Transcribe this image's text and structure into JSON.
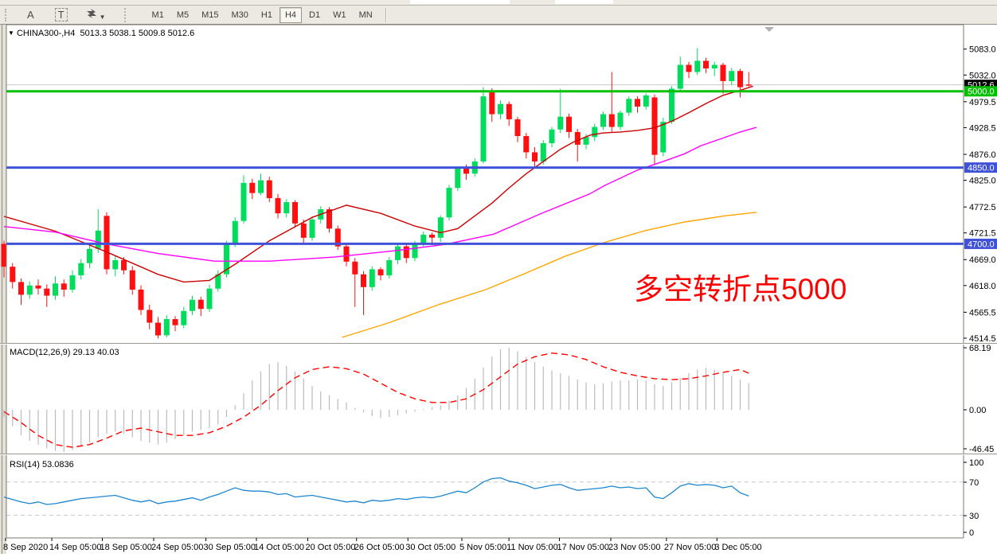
{
  "toolbar": {
    "tools": {
      "a_label": "A",
      "t_label": "T"
    },
    "timeframes": [
      "M1",
      "M5",
      "M15",
      "M30",
      "H1",
      "H4",
      "D1",
      "W1",
      "MN"
    ],
    "active_timeframe": "H4"
  },
  "chart": {
    "symbol_title": "CHINA300-,H4",
    "ohlc_text": "5013.3 5038.1 5009.8 5012.6",
    "macd_label": "MACD(12,26,9) 29.13 40.03",
    "rsi_label": "RSI(14) 53.0836",
    "annotation_text": "多空转折点5000",
    "annotation_color": "#ff0000"
  },
  "chart_data": [
    {
      "type": "candlestick",
      "title": "CHINA300-,H4",
      "current_open": 5013.3,
      "current_high": 5038.1,
      "current_low": 5009.8,
      "current_close": 5012.6,
      "bull_color": "#00dc5c",
      "bear_color": "#ff0f0f",
      "y_ticks": [
        5083.0,
        5032.0,
        4979.5,
        4928.5,
        4876.0,
        4825.0,
        4772.5,
        4721.5,
        4669.0,
        4618.0,
        4565.5,
        4514.5
      ],
      "ylim": [
        4514.5,
        5083.0
      ],
      "x_ticks": [
        {
          "i": 0,
          "label": "8 Sep 2020"
        },
        {
          "i": 5.4,
          "label": "14 Sep 05:00"
        },
        {
          "i": 11.3,
          "label": "18 Sep 05:00"
        },
        {
          "i": 17.3,
          "label": "24 Sep 05:00"
        },
        {
          "i": 23.4,
          "label": "30 Sep 05:00"
        },
        {
          "i": 29.3,
          "label": "14 Oct 05:00"
        },
        {
          "i": 35.3,
          "label": "20 Oct 05:00"
        },
        {
          "i": 41.0,
          "label": "26 Oct 05:00"
        },
        {
          "i": 47.0,
          "label": "30 Oct 05:00"
        },
        {
          "i": 53.3,
          "label": "5 Nov 05:00"
        },
        {
          "i": 58.8,
          "label": "11 Nov 05:00"
        },
        {
          "i": 64.7,
          "label": "17 Nov 05:00"
        },
        {
          "i": 70.7,
          "label": "23 Nov 05:00"
        },
        {
          "i": 77.2,
          "label": "27 Nov 05:00"
        },
        {
          "i": 83.1,
          "label": "3 Dec 05:00"
        }
      ],
      "hlines": [
        {
          "price": 5000.0,
          "label": "5000.0",
          "color": "#00c000",
          "width": 3
        },
        {
          "price": 4850.0,
          "label": "4850.0",
          "color": "#4052d8",
          "width": 3
        },
        {
          "price": 4700.0,
          "label": "4700.0",
          "color": "#4052d8",
          "width": 3
        }
      ],
      "bid_line": {
        "price": 5012.6,
        "label": "5012.6",
        "line_color": "#c8c8c8",
        "box_color": "#000000"
      },
      "candles": [
        [
          4700,
          4706,
          4634,
          4655
        ],
        [
          4655,
          4662,
          4612,
          4625
        ],
        [
          4625,
          4632,
          4580,
          4600
        ],
        [
          4600,
          4626,
          4592,
          4618
        ],
        [
          4618,
          4630,
          4600,
          4612
        ],
        [
          4612,
          4620,
          4576,
          4598
        ],
        [
          4598,
          4636,
          4590,
          4622
        ],
        [
          4622,
          4630,
          4596,
          4610
        ],
        [
          4610,
          4648,
          4604,
          4638
        ],
        [
          4638,
          4670,
          4630,
          4662
        ],
        [
          4662,
          4700,
          4652,
          4690
        ],
        [
          4690,
          4768,
          4682,
          4726
        ],
        [
          4755,
          4762,
          4640,
          4650
        ],
        [
          4650,
          4676,
          4636,
          4668
        ],
        [
          4668,
          4674,
          4640,
          4648
        ],
        [
          4648,
          4656,
          4600,
          4610
        ],
        [
          4610,
          4618,
          4560,
          4570
        ],
        [
          4570,
          4580,
          4532,
          4545
        ],
        [
          4545,
          4556,
          4514,
          4520
        ],
        [
          4520,
          4560,
          4516,
          4552
        ],
        [
          4552,
          4558,
          4528,
          4540
        ],
        [
          4540,
          4576,
          4534,
          4568
        ],
        [
          4568,
          4598,
          4560,
          4590
        ],
        [
          4590,
          4596,
          4558,
          4572
        ],
        [
          4572,
          4620,
          4566,
          4612
        ],
        [
          4612,
          4648,
          4606,
          4640
        ],
        [
          4640,
          4706,
          4634,
          4700
        ],
        [
          4700,
          4752,
          4694,
          4745
        ],
        [
          4745,
          4835,
          4740,
          4820
        ],
        [
          4820,
          4828,
          4788,
          4800
        ],
        [
          4800,
          4838,
          4796,
          4825
        ],
        [
          4825,
          4832,
          4782,
          4790
        ],
        [
          4790,
          4798,
          4750,
          4760
        ],
        [
          4760,
          4788,
          4752,
          4782
        ],
        [
          4782,
          4786,
          4732,
          4740
        ],
        [
          4740,
          4748,
          4700,
          4712
        ],
        [
          4712,
          4754,
          4706,
          4748
        ],
        [
          4748,
          4774,
          4740,
          4768
        ],
        [
          4768,
          4772,
          4722,
          4730
        ],
        [
          4730,
          4736,
          4688,
          4695
        ],
        [
          4695,
          4700,
          4656,
          4665
        ],
        [
          4665,
          4672,
          4576,
          4640
        ],
        [
          4640,
          4646,
          4560,
          4615
        ],
        [
          4615,
          4656,
          4608,
          4650
        ],
        [
          4650,
          4654,
          4628,
          4638
        ],
        [
          4638,
          4674,
          4632,
          4668
        ],
        [
          4668,
          4700,
          4660,
          4695
        ],
        [
          4695,
          4700,
          4662,
          4672
        ],
        [
          4672,
          4706,
          4666,
          4700
        ],
        [
          4700,
          4724,
          4694,
          4718
        ],
        [
          4718,
          4722,
          4698,
          4712
        ],
        [
          4712,
          4756,
          4704,
          4752
        ],
        [
          4752,
          4816,
          4746,
          4810
        ],
        [
          4810,
          4852,
          4804,
          4848
        ],
        [
          4848,
          4856,
          4826,
          4838
        ],
        [
          4838,
          4868,
          4832,
          4862
        ],
        [
          4862,
          5008,
          4858,
          4990
        ],
        [
          5000,
          5006,
          4940,
          4955
        ],
        [
          4955,
          4982,
          4945,
          4975
        ],
        [
          4975,
          4980,
          4932,
          4945
        ],
        [
          4945,
          4950,
          4900,
          4912
        ],
        [
          4912,
          4918,
          4868,
          4880
        ],
        [
          4880,
          4890,
          4850,
          4862
        ],
        [
          4862,
          4904,
          4856,
          4898
        ],
        [
          4898,
          4930,
          4890,
          4925
        ],
        [
          4925,
          5005,
          4918,
          4950
        ],
        [
          4950,
          4956,
          4908,
          4920
        ],
        [
          4920,
          4926,
          4862,
          4895
        ],
        [
          4895,
          4916,
          4886,
          4910
        ],
        [
          4910,
          4936,
          4902,
          4930
        ],
        [
          4930,
          4960,
          4924,
          4955
        ],
        [
          4955,
          5038,
          4920,
          4930
        ],
        [
          4930,
          4962,
          4924,
          4958
        ],
        [
          4958,
          4990,
          4952,
          4985
        ],
        [
          4985,
          4990,
          4958,
          4970
        ],
        [
          4970,
          4996,
          4964,
          4992
        ],
        [
          4988,
          4994,
          4855,
          4875
        ],
        [
          4880,
          4948,
          4872,
          4940
        ],
        [
          4940,
          5010,
          4936,
          5005
        ],
        [
          5005,
          5068,
          5000,
          5052
        ],
        [
          5052,
          5058,
          5026,
          5038
        ],
        [
          5038,
          5085,
          5032,
          5060
        ],
        [
          5060,
          5066,
          5036,
          5045
        ],
        [
          5045,
          5058,
          5030,
          5052
        ],
        [
          5052,
          5056,
          4995,
          5020
        ],
        [
          5020,
          5046,
          5012,
          5040
        ],
        [
          5040,
          5044,
          4988,
          5008
        ],
        [
          5013.3,
          5038.1,
          5009.8,
          5012.6
        ]
      ],
      "overlays": [
        {
          "name": "ma-red",
          "color": "#cc0000",
          "width": 1.4,
          "points": [
            [
              0,
              4754
            ],
            [
              6,
              4725
            ],
            [
              12,
              4684
            ],
            [
              18,
              4640
            ],
            [
              21,
              4625
            ],
            [
              24,
              4628
            ],
            [
              27,
              4660
            ],
            [
              31,
              4706
            ],
            [
              36,
              4752
            ],
            [
              40,
              4776
            ],
            [
              44,
              4760
            ],
            [
              48,
              4735
            ],
            [
              51,
              4722
            ],
            [
              53,
              4730
            ],
            [
              55,
              4755
            ],
            [
              57,
              4780
            ],
            [
              59,
              4810
            ],
            [
              61,
              4838
            ],
            [
              63,
              4862
            ],
            [
              65,
              4886
            ],
            [
              66.5,
              4900
            ],
            [
              68.5,
              4914
            ],
            [
              70,
              4918
            ],
            [
              72,
              4920
            ],
            [
              74,
              4923
            ],
            [
              76,
              4928
            ],
            [
              78,
              4941
            ],
            [
              80,
              4958
            ],
            [
              82,
              4976
            ],
            [
              84,
              4992
            ],
            [
              86,
              5002
            ],
            [
              87.5,
              5010
            ]
          ]
        },
        {
          "name": "ma-magenta",
          "color": "#ff00ff",
          "width": 1.4,
          "points": [
            [
              0,
              4734
            ],
            [
              6,
              4723
            ],
            [
              11.6,
              4701
            ],
            [
              18,
              4681
            ],
            [
              24.6,
              4666
            ],
            [
              31,
              4666
            ],
            [
              38.6,
              4674
            ],
            [
              46,
              4687
            ],
            [
              51.6,
              4699
            ],
            [
              57.2,
              4719
            ],
            [
              62.8,
              4760
            ],
            [
              68.4,
              4798
            ],
            [
              70.2,
              4815
            ],
            [
              74,
              4845
            ],
            [
              77,
              4862
            ],
            [
              79.5,
              4877
            ],
            [
              81.4,
              4893
            ],
            [
              84,
              4908
            ],
            [
              86,
              4920
            ],
            [
              87.9,
              4929
            ]
          ]
        },
        {
          "name": "ma-orange",
          "color": "#ffa500",
          "width": 1.4,
          "points": [
            [
              39.5,
              4516
            ],
            [
              45,
              4545
            ],
            [
              50.7,
              4580
            ],
            [
              56.3,
              4610
            ],
            [
              60.9,
              4642
            ],
            [
              65.6,
              4676
            ],
            [
              70.2,
              4703
            ],
            [
              74.9,
              4726
            ],
            [
              79.5,
              4743
            ],
            [
              84.2,
              4755
            ],
            [
              87.9,
              4762
            ]
          ]
        }
      ]
    },
    {
      "type": "bar",
      "title": "MACD(12,26,9)",
      "main_value": 29.13,
      "signal_value": 40.03,
      "y_ticks": [
        68.19,
        0.0,
        -46.45
      ],
      "histogram_color": "#bbbbbb",
      "signal_color": "#ff0000",
      "values": [
        -8,
        -18,
        -28,
        -34,
        -38,
        -42,
        -45,
        -46,
        -44,
        -40,
        -36,
        -30,
        -26,
        -24,
        -26,
        -30,
        -34,
        -36,
        -38,
        -36,
        -32,
        -28,
        -24,
        -22,
        -20,
        -16,
        -8,
        5,
        18,
        32,
        42,
        50,
        52,
        48,
        42,
        34,
        26,
        20,
        16,
        12,
        8,
        2,
        -3,
        -7,
        -9,
        -8,
        -6,
        -4,
        -2,
        1,
        3,
        5,
        10,
        16,
        24,
        34,
        46,
        58,
        66,
        68,
        64,
        58,
        52,
        47,
        43,
        40,
        37,
        33,
        30,
        28,
        29,
        31,
        32,
        32,
        33,
        32,
        28,
        26,
        30,
        35,
        40,
        44,
        46,
        44,
        40,
        37,
        33,
        29.1
      ],
      "signal_points": [
        [
          0,
          -2
        ],
        [
          2,
          -14
        ],
        [
          4,
          -28
        ],
        [
          6,
          -38
        ],
        [
          8,
          -41
        ],
        [
          10,
          -38
        ],
        [
          12,
          -31
        ],
        [
          14,
          -23
        ],
        [
          16,
          -20
        ],
        [
          18,
          -24
        ],
        [
          20,
          -28
        ],
        [
          22,
          -28
        ],
        [
          24,
          -25
        ],
        [
          26,
          -18
        ],
        [
          28,
          -8
        ],
        [
          30,
          5
        ],
        [
          32,
          21
        ],
        [
          34,
          35
        ],
        [
          36,
          44
        ],
        [
          38,
          47
        ],
        [
          40,
          45
        ],
        [
          42,
          39
        ],
        [
          44,
          29
        ],
        [
          46,
          19
        ],
        [
          48,
          12
        ],
        [
          50,
          8
        ],
        [
          52,
          8
        ],
        [
          54,
          12
        ],
        [
          56,
          22
        ],
        [
          58,
          36
        ],
        [
          60,
          50
        ],
        [
          62,
          58
        ],
        [
          64,
          62
        ],
        [
          66,
          60
        ],
        [
          68,
          55
        ],
        [
          70,
          47
        ],
        [
          72,
          41
        ],
        [
          74,
          37
        ],
        [
          76,
          34
        ],
        [
          78,
          33
        ],
        [
          80,
          34
        ],
        [
          82,
          37
        ],
        [
          84,
          41
        ],
        [
          86,
          44
        ],
        [
          87,
          40
        ]
      ]
    },
    {
      "type": "line",
      "title": "RSI(14)",
      "current_value": 53.0836,
      "y_ticks": [
        100,
        70,
        30,
        0
      ],
      "levels": [
        70,
        30
      ],
      "line_color": "#1c86d1",
      "level_color": "#c8c8c8",
      "values": [
        52,
        49,
        46,
        44,
        46,
        43,
        44,
        46,
        48,
        50,
        51,
        52,
        53,
        54,
        51,
        48,
        46,
        48,
        44,
        46,
        47,
        49,
        51,
        48,
        52,
        55,
        59,
        63,
        60,
        59,
        59,
        58,
        55,
        56,
        52,
        53,
        54,
        52,
        50,
        48,
        46,
        47,
        45,
        48,
        47,
        48,
        50,
        49,
        51,
        52,
        51,
        53,
        56,
        59,
        57,
        63,
        70,
        74,
        75,
        71,
        69,
        66,
        62,
        64,
        66,
        67,
        63,
        60,
        61,
        62,
        63,
        65,
        63,
        64,
        62,
        63,
        52,
        50,
        57,
        65,
        68,
        66,
        67,
        66,
        63,
        65,
        57,
        53.1
      ]
    }
  ]
}
